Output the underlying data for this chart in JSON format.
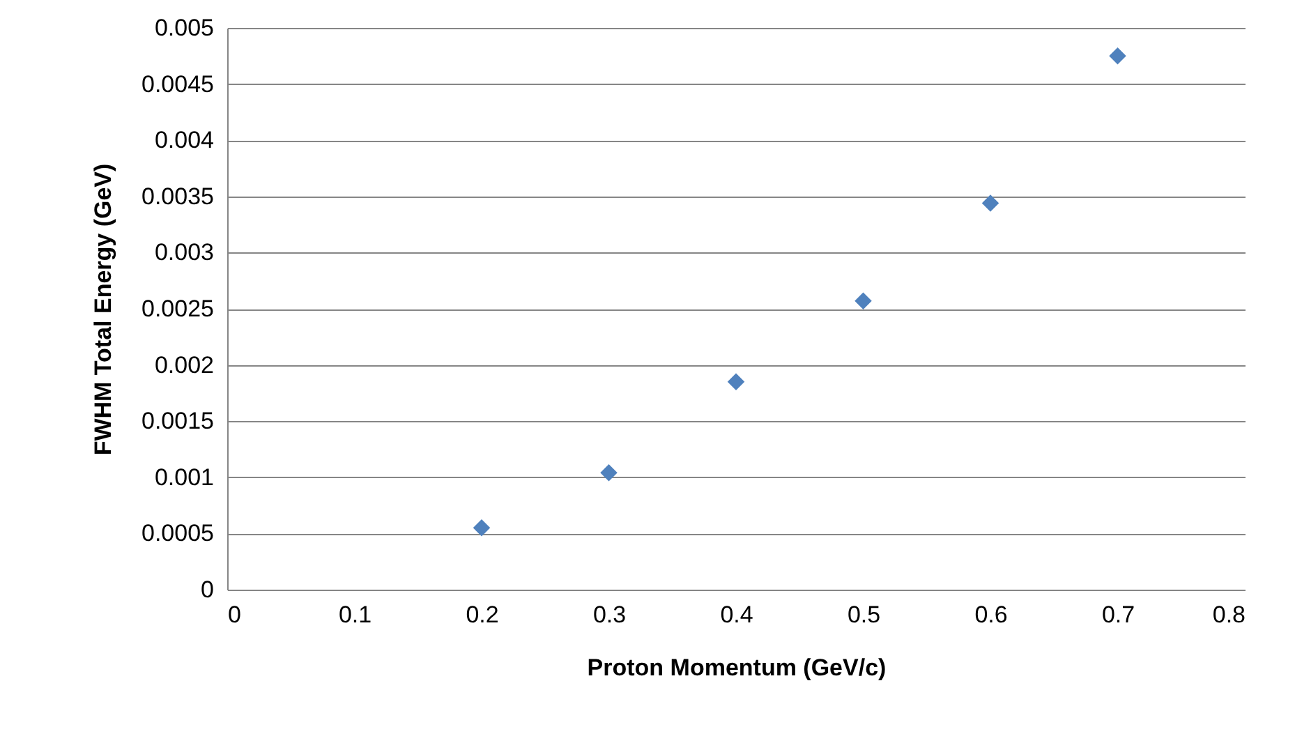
{
  "chart_data": {
    "type": "scatter",
    "xlabel": "Proton Momentum (GeV/c)",
    "ylabel": "FWHM Total Energy (GeV)",
    "x": [
      0.2,
      0.3,
      0.4,
      0.5,
      0.6,
      0.7
    ],
    "series": [
      {
        "color": "#4f81bd",
        "values": [
          0.00055,
          0.00104,
          0.00185,
          0.00257,
          0.00344,
          0.00475
        ]
      }
    ],
    "xlim": [
      0,
      0.8
    ],
    "xticks": [
      0,
      0.1,
      0.2,
      0.3,
      0.4,
      0.5,
      0.6,
      0.7,
      0.8
    ],
    "ylim": [
      0,
      0.005
    ],
    "yticks": [
      0,
      0.0005,
      0.001,
      0.0015,
      0.002,
      0.0025,
      0.003,
      0.0035,
      0.004,
      0.0045,
      0.005
    ],
    "grid": "y",
    "marker": "diamond"
  }
}
